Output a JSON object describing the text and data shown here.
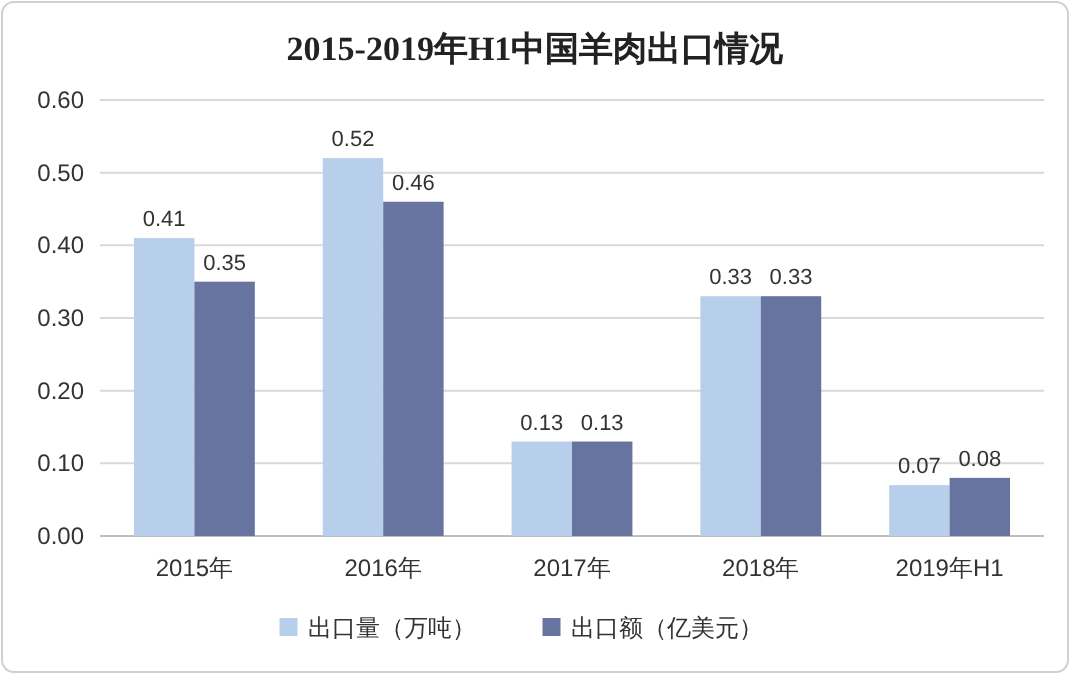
{
  "chart_data": {
    "type": "bar",
    "title": "2015-2019年H1中国羊肉出口情况",
    "categories": [
      "2015年",
      "2016年",
      "2017年",
      "2018年",
      "2019年H1"
    ],
    "series": [
      {
        "name": "出口量（万吨）",
        "color": "#b7cfeb",
        "values": [
          0.41,
          0.52,
          0.13,
          0.33,
          0.07
        ]
      },
      {
        "name": "出口额（亿美元）",
        "color": "#66749f",
        "values": [
          0.35,
          0.46,
          0.13,
          0.33,
          0.08
        ]
      }
    ],
    "ylim": [
      0,
      0.6
    ],
    "yticks": [
      {
        "value": 0,
        "label": "0.00"
      },
      {
        "value": 0.1,
        "label": "0.10"
      },
      {
        "value": 0.2,
        "label": "0.20"
      },
      {
        "value": 0.3,
        "label": "0.30"
      },
      {
        "value": 0.4,
        "label": "0.40"
      },
      {
        "value": 0.5,
        "label": "0.50"
      },
      {
        "value": 0.6,
        "label": "0.60"
      }
    ],
    "grid": "y",
    "legend": "bottom",
    "data_labels": true
  }
}
